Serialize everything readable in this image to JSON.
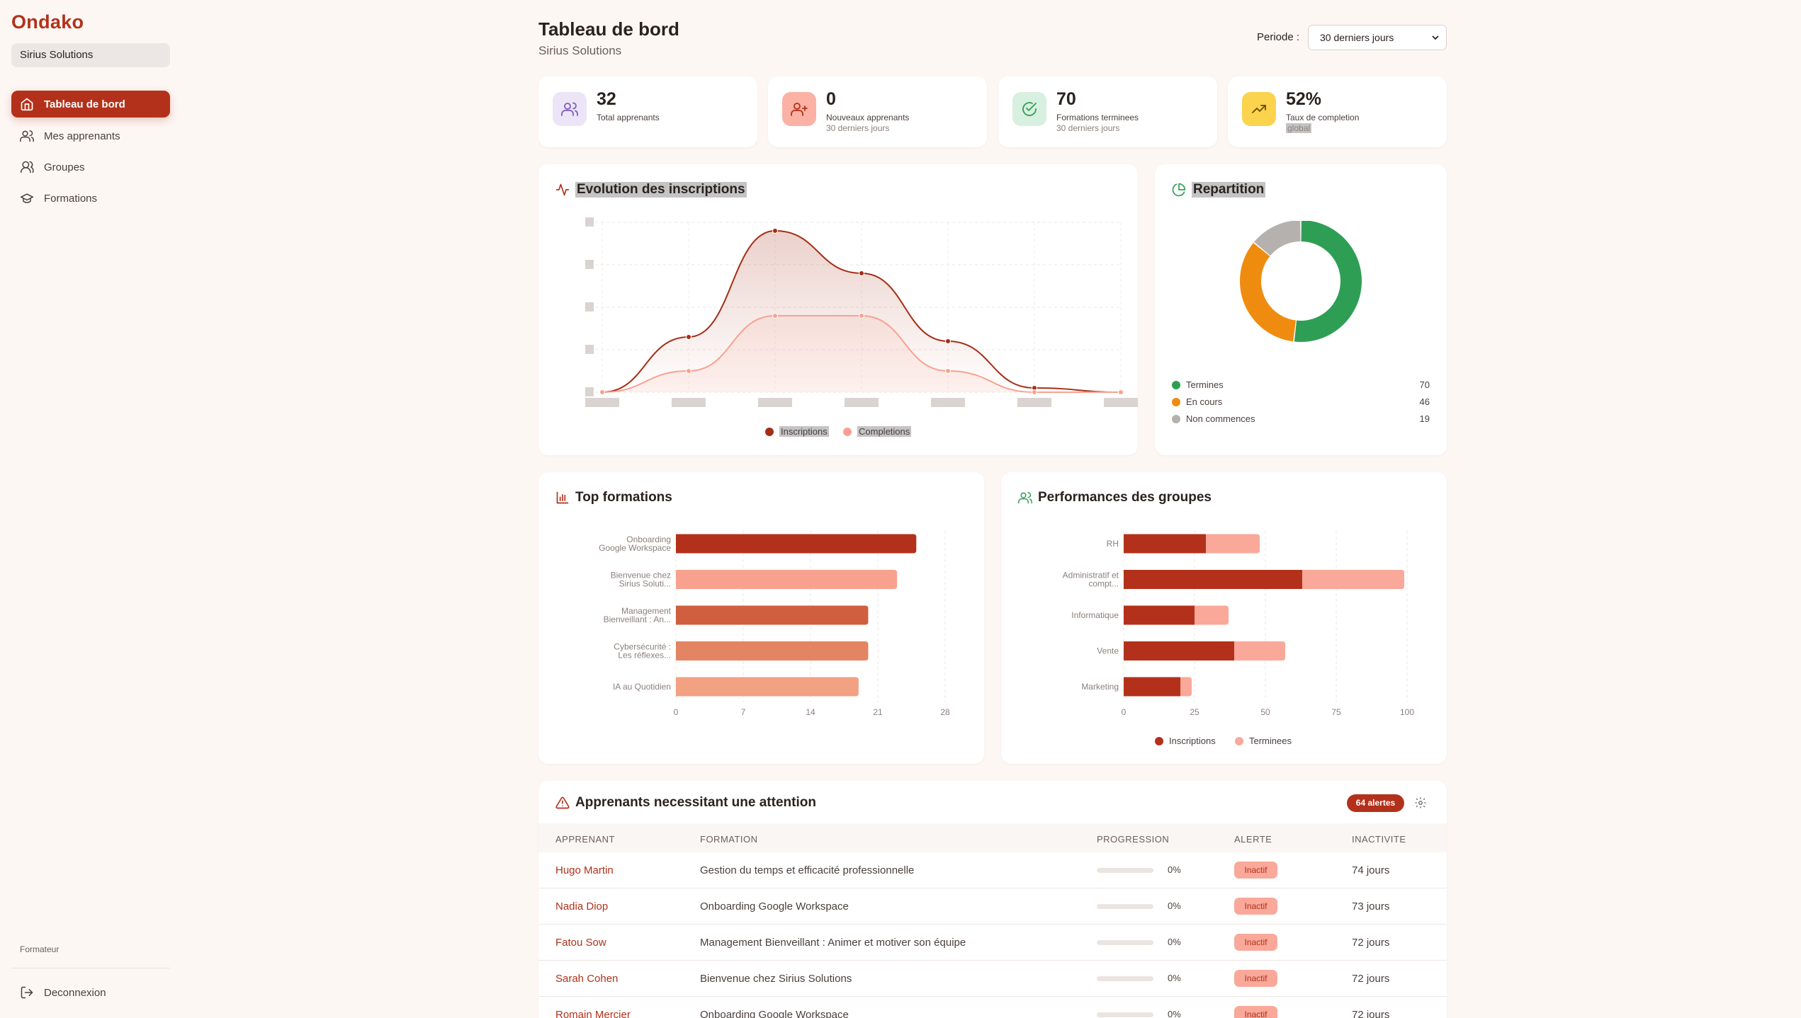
{
  "app": {
    "logo": "Ondako",
    "organization": "Sirius Solutions"
  },
  "nav": [
    {
      "label": "Tableau de bord",
      "icon": "home-icon",
      "active": true
    },
    {
      "label": "Mes apprenants",
      "icon": "users-icon"
    },
    {
      "label": "Groupes",
      "icon": "group-icon"
    },
    {
      "label": "Formations",
      "icon": "graduation-cap-icon"
    }
  ],
  "footer": {
    "role": "Formateur",
    "logout": "Deconnexion"
  },
  "header": {
    "title": "Tableau de bord",
    "subtitle": "Sirius Solutions",
    "period_label": "Periode :",
    "period_value": "30 derniers jours"
  },
  "stats": [
    {
      "value": "32",
      "label": "Total apprenants",
      "sub": "",
      "icon": "users-icon",
      "color": "#7c5cbf"
    },
    {
      "value": "0",
      "label": "Nouveaux apprenants",
      "sub": "30 derniers jours",
      "icon": "user-plus-icon",
      "color": "#d0452a"
    },
    {
      "value": "70",
      "label": "Formations terminees",
      "sub": "30 derniers jours",
      "icon": "check-circle-icon",
      "color": "#2f9e55"
    },
    {
      "value": "52%",
      "label": "Taux de completion",
      "sub": "global",
      "icon": "trending-up-icon",
      "color": "#a07a00"
    }
  ],
  "evolution": {
    "title": "Evolution des inscriptions",
    "icon": "activity-icon",
    "legend": [
      "Inscriptions",
      "Completions"
    ],
    "colors": [
      "#a52d16",
      "#f9a18f"
    ]
  },
  "repartition": {
    "title": "Repartition",
    "icon": "pie-chart-icon"
  },
  "top_formations": {
    "title": "Top formations",
    "icon": "bar-chart-icon"
  },
  "groupes": {
    "title": "Performances des groupes",
    "icon": "users-icon",
    "legend": [
      "Inscriptions",
      "Terminees"
    ]
  },
  "chart_data": [
    {
      "type": "area",
      "title": "Evolution des inscriptions",
      "series": [
        {
          "name": "Inscriptions",
          "values": [
            0,
            13,
            38,
            28,
            12,
            1,
            0
          ]
        },
        {
          "name": "Completions",
          "values": [
            0,
            5,
            18,
            18,
            5,
            0,
            0
          ]
        }
      ],
      "ylim": [
        0,
        40
      ]
    },
    {
      "type": "pie",
      "title": "Repartition",
      "categories": [
        "Termines",
        "En cours",
        "Non commences"
      ],
      "values": [
        70,
        46,
        19
      ],
      "colors": [
        "#2f9e55",
        "#ef8c10",
        "#b4b1ae"
      ]
    },
    {
      "type": "bar",
      "title": "Top formations",
      "orientation": "horizontal",
      "categories": [
        "Onboarding Google Workspace",
        "Bienvenue chez Sirius Soluti...",
        "Management Bienveillant : An...",
        "Cybersécurité : Les réflexes...",
        "IA au Quotidien"
      ],
      "values": [
        25,
        23,
        20,
        20,
        19
      ],
      "xticks": [
        "0",
        "7",
        "14",
        "21",
        "28"
      ],
      "xlim": [
        0,
        28
      ],
      "colors": [
        "#b3311a",
        "#f9a18f",
        "#cf5f3f",
        "#e38462",
        "#f2a182"
      ]
    },
    {
      "type": "bar",
      "title": "Performances des groupes",
      "orientation": "horizontal",
      "stacked": true,
      "categories": [
        "RH",
        "Administratif et compt...",
        "Informatique",
        "Vente",
        "Marketing"
      ],
      "series": [
        {
          "name": "Inscriptions",
          "values": [
            29,
            63,
            25,
            39,
            20
          ]
        },
        {
          "name": "Terminees",
          "values": [
            19,
            36,
            12,
            18,
            4
          ]
        }
      ],
      "xticks": [
        "0",
        "25",
        "50",
        "75",
        "100"
      ],
      "xlim": [
        0,
        100
      ],
      "colors": [
        "#b3311a",
        "#f9a899"
      ]
    }
  ],
  "attention": {
    "title": "Apprenants necessitant une attention",
    "icon": "alert-triangle-icon",
    "badge": "64 alertes",
    "headers": [
      "APPRENANT",
      "FORMATION",
      "PROGRESSION",
      "ALERTE",
      "INACTIVITE"
    ],
    "rows": [
      {
        "name": "Hugo Martin",
        "formation": "Gestion du temps et efficacité professionnelle",
        "progress": "0%",
        "alert": "Inactif",
        "inactivity": "74 jours"
      },
      {
        "name": "Nadia Diop",
        "formation": "Onboarding Google Workspace",
        "progress": "0%",
        "alert": "Inactif",
        "inactivity": "73 jours"
      },
      {
        "name": "Fatou Sow",
        "formation": "Management Bienveillant : Animer et motiver son équipe",
        "progress": "0%",
        "alert": "Inactif",
        "inactivity": "72 jours"
      },
      {
        "name": "Sarah Cohen",
        "formation": "Bienvenue chez Sirius Solutions",
        "progress": "0%",
        "alert": "Inactif",
        "inactivity": "72 jours"
      },
      {
        "name": "Romain Mercier",
        "formation": "Onboarding Google Workspace",
        "progress": "0%",
        "alert": "Inactif",
        "inactivity": "72 jours"
      }
    ]
  }
}
